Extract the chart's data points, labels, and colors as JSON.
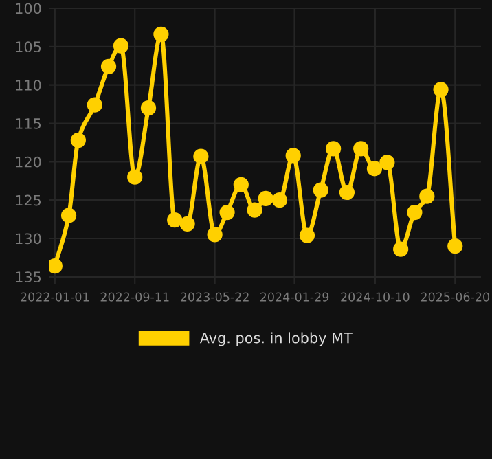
{
  "chart_data": {
    "type": "line",
    "x": [
      "2022-01-01",
      "2022-02-14",
      "2022-03-16",
      "2022-05-07",
      "2022-06-20",
      "2022-07-29",
      "2022-09-11",
      "2022-10-24",
      "2022-12-03",
      "2023-01-15",
      "2023-02-24",
      "2023-04-08",
      "2023-05-22",
      "2023-06-30",
      "2023-08-13",
      "2023-09-25",
      "2023-10-30",
      "2023-12-13",
      "2024-01-25",
      "2024-03-09",
      "2024-04-21",
      "2024-05-31",
      "2024-07-13",
      "2024-08-26",
      "2024-10-08",
      "2024-11-17",
      "2024-12-30",
      "2025-02-12",
      "2025-03-23",
      "2025-05-06",
      "2025-06-20"
    ],
    "series": [
      {
        "name": "Avg. pos. in lobby MT",
        "color": "#ffd000",
        "values": [
          133.6,
          127,
          117.2,
          112.6,
          107.6,
          104.9,
          122,
          113,
          103.4,
          127.6,
          128.1,
          119.3,
          129.5,
          126.6,
          123,
          126.3,
          124.8,
          125,
          119.2,
          129.6,
          123.7,
          118.3,
          124,
          118.3,
          120.9,
          120.1,
          131.4,
          126.6,
          124.5,
          110.6,
          131
        ]
      }
    ],
    "xlim": [
      "2021-12-15",
      "2025-09-10"
    ],
    "xticks": [
      "2022-01-01",
      "2022-09-11",
      "2023-05-22",
      "2024-01-29",
      "2024-10-10",
      "2025-06-20"
    ],
    "ylim": [
      136,
      100
    ],
    "yticks": [
      100,
      105,
      110,
      115,
      120,
      125,
      130,
      135
    ],
    "grid": true,
    "legend": "bottom",
    "marker": "circle",
    "line_style": "solid"
  }
}
